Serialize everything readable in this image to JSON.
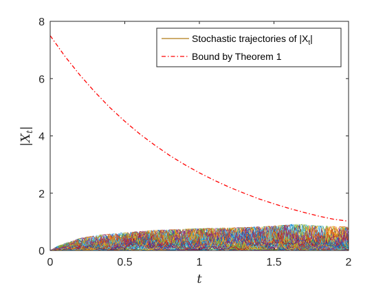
{
  "chart_data": {
    "type": "line",
    "title": "",
    "xlabel": "t",
    "ylabel": "|X_t|",
    "xlim": [
      0,
      2
    ],
    "ylim": [
      0,
      8
    ],
    "x_ticks": [
      "0",
      "0.5",
      "1",
      "1.5",
      "2"
    ],
    "y_ticks": [
      "0",
      "2",
      "4",
      "6",
      "8"
    ],
    "x_tick_values": [
      0,
      0.5,
      1,
      1.5,
      2
    ],
    "y_tick_values": [
      0,
      2,
      4,
      6,
      8
    ],
    "grid": false,
    "legend_position": "top-right",
    "legend": [
      {
        "label": "Stochastic trajectories of |X",
        "subscript": "t",
        "suffix": "|",
        "color": "#b07a16",
        "style": "solid"
      },
      {
        "label": "Bound by Theorem 1",
        "color": "#ff0000",
        "style": "dash-dot"
      }
    ],
    "series": [
      {
        "name": "Bound by Theorem 1",
        "color": "#ff0000",
        "style": "dash-dot",
        "x": [
          0,
          0.1,
          0.2,
          0.3,
          0.4,
          0.5,
          0.6,
          0.7,
          0.8,
          0.9,
          1.0,
          1.1,
          1.2,
          1.3,
          1.4,
          1.5,
          1.6,
          1.7,
          1.8,
          1.9,
          2.0
        ],
        "y": [
          7.5,
          6.77,
          6.12,
          5.53,
          4.99,
          4.51,
          4.07,
          3.68,
          3.32,
          3.0,
          2.71,
          2.45,
          2.21,
          2.0,
          1.8,
          1.63,
          1.47,
          1.33,
          1.2,
          1.09,
          1.02
        ]
      },
      {
        "name": "Stochastic trajectories of |Xt|",
        "style": "noisy-band",
        "colors": [
          "#0072bd",
          "#d95319",
          "#edb120",
          "#7e2f8e",
          "#77ac30",
          "#4dbeee",
          "#a2142f"
        ],
        "x": [
          0,
          0.05,
          0.1,
          0.2,
          0.3,
          0.5,
          0.7,
          1.0,
          1.3,
          1.5,
          1.65,
          1.8,
          2.0
        ],
        "upper_envelope": [
          0,
          0.15,
          0.25,
          0.42,
          0.52,
          0.62,
          0.7,
          0.76,
          0.8,
          0.85,
          0.92,
          0.85,
          0.82
        ],
        "trajectory_count": 60
      }
    ]
  }
}
